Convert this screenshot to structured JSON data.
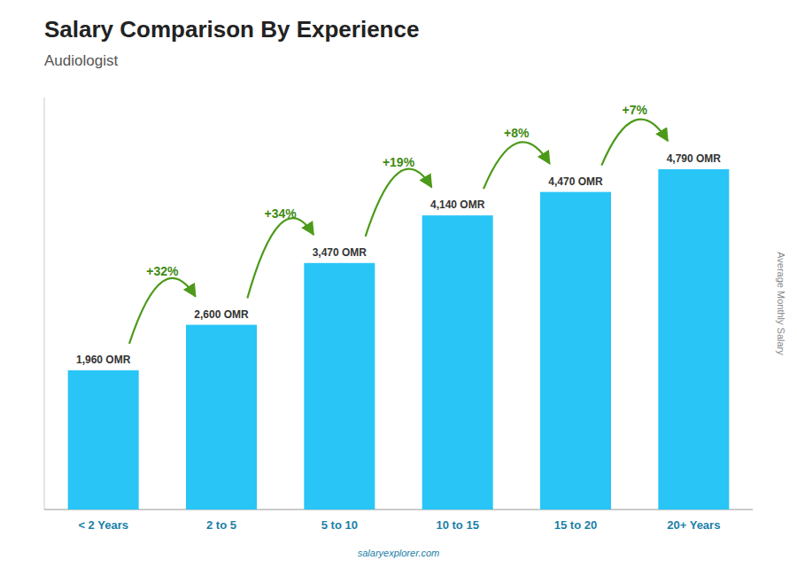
{
  "chart_data": {
    "type": "bar",
    "title": "Salary Comparison By Experience",
    "subtitle": "Audiologist",
    "ylabel": "Average Monthly Salary",
    "footer": "salaryexplorer.com",
    "categories": [
      "< 2 Years",
      "2 to 5",
      "5 to 10",
      "10 to 15",
      "15 to 20",
      "20+ Years"
    ],
    "values": [
      1960,
      2600,
      3470,
      4140,
      4470,
      4790
    ],
    "value_labels": [
      "1,960 OMR",
      "2,600 OMR",
      "3,470 OMR",
      "4,140 OMR",
      "4,470 OMR",
      "4,790 OMR"
    ],
    "annotations": [
      null,
      "+32%",
      "+34%",
      "+19%",
      "+8%",
      "+7%"
    ],
    "color": "#29C5F6",
    "ylim": [
      0,
      5800
    ],
    "yticks": [],
    "grid": false,
    "data_labels": true,
    "tick_labels": "x"
  }
}
